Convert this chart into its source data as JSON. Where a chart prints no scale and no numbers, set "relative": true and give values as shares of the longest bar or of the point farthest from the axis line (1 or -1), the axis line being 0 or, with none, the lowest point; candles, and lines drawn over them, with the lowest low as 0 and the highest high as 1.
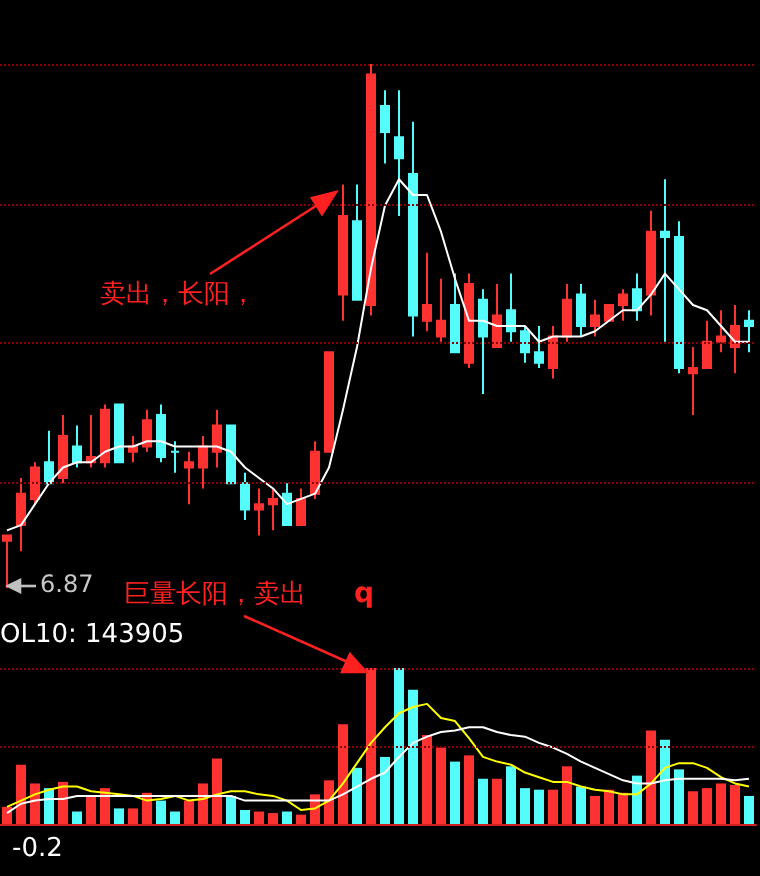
{
  "chart_data": [
    {
      "type": "candlestick",
      "relative": true,
      "ref_lines": [
        {
          "axis": "y",
          "value": 1,
          "color": "#8b0000",
          "line_style": "dotted"
        },
        {
          "axis": "y",
          "value": 0.73,
          "color": "#8b0000",
          "line_style": "dotted"
        },
        {
          "axis": "y",
          "value": 0.47,
          "color": "#8b0000",
          "line_style": "dotted"
        },
        {
          "axis": "y",
          "value": 0.2,
          "color": "#8b0000",
          "line_style": "dotted"
        }
      ],
      "categories": [
        null,
        null,
        null,
        null,
        null,
        null,
        null,
        null,
        null,
        null,
        null,
        null,
        null,
        null,
        null,
        null,
        null,
        null,
        null,
        null,
        null,
        null,
        null,
        null,
        null,
        null,
        null,
        null,
        null,
        null,
        null,
        null,
        null,
        null,
        null,
        null,
        null,
        null,
        null,
        null,
        null,
        null,
        null,
        null,
        null,
        null,
        null,
        null,
        null,
        null,
        null,
        null,
        null,
        null
      ],
      "ohlc": [
        [
          0.09,
          0.1,
          0,
          0.1
        ],
        [
          0.12,
          0.21,
          0.07,
          0.18
        ],
        [
          0.17,
          0.24,
          0.16,
          0.23
        ],
        [
          0.24,
          0.3,
          0.2,
          0.2
        ],
        [
          0.21,
          0.33,
          0.2,
          0.29
        ],
        [
          0.27,
          0.31,
          0.23,
          0.24
        ],
        [
          0.24,
          0.33,
          0.23,
          0.25
        ],
        [
          0.24,
          0.35,
          0.23,
          0.34
        ],
        [
          0.35,
          0.35,
          0.24,
          0.24
        ],
        [
          0.26,
          0.29,
          0.24,
          0.27
        ],
        [
          0.27,
          0.34,
          0.26,
          0.32
        ],
        [
          0.33,
          0.35,
          0.24,
          0.25
        ],
        [
          0.26,
          0.28,
          0.22,
          0.26
        ],
        [
          0.23,
          0.26,
          0.16,
          0.24
        ],
        [
          0.23,
          0.29,
          0.19,
          0.27
        ],
        [
          0.26,
          0.34,
          0.23,
          0.31
        ],
        [
          0.31,
          0.31,
          0.2,
          0.2
        ],
        [
          0.2,
          0.22,
          0.13,
          0.15
        ],
        [
          0.15,
          0.19,
          0.1,
          0.16
        ],
        [
          0.16,
          0.19,
          0.11,
          0.17
        ],
        [
          0.18,
          0.2,
          0.12,
          0.12
        ],
        [
          0.12,
          0.19,
          0.12,
          0.17
        ],
        [
          0.18,
          0.28,
          0.17,
          0.26
        ],
        [
          0.26,
          0.45,
          0.26,
          0.45
        ],
        [
          0.56,
          0.77,
          0.51,
          0.71
        ],
        [
          0.7,
          0.77,
          0.55,
          0.55
        ],
        [
          0.54,
          1,
          0.52,
          0.98
        ],
        [
          0.92,
          0.95,
          0.81,
          0.87
        ],
        [
          0.86,
          0.95,
          0.71,
          0.82
        ],
        [
          0.79,
          0.89,
          0.48,
          0.52
        ],
        [
          0.51,
          0.64,
          0.49,
          0.54
        ],
        [
          0.48,
          0.59,
          0.47,
          0.51
        ],
        [
          0.54,
          0.6,
          0.45,
          0.45
        ],
        [
          0.43,
          0.6,
          0.42,
          0.58
        ],
        [
          0.55,
          0.57,
          0.37,
          0.48
        ],
        [
          0.46,
          0.58,
          0.46,
          0.52
        ],
        [
          0.53,
          0.6,
          0.47,
          0.49
        ],
        [
          0.49,
          0.5,
          0.43,
          0.45
        ],
        [
          0.45,
          0.5,
          0.42,
          0.43
        ],
        [
          0.42,
          0.5,
          0.4,
          0.48
        ],
        [
          0.48,
          0.58,
          0.47,
          0.55
        ],
        [
          0.56,
          0.58,
          0.48,
          0.5
        ],
        [
          0.5,
          0.55,
          0.48,
          0.52
        ],
        [
          0.51,
          0.54,
          0.51,
          0.54
        ],
        [
          0.54,
          0.57,
          0.51,
          0.56
        ],
        [
          0.57,
          0.6,
          0.51,
          0.53
        ],
        [
          0.56,
          0.72,
          0.52,
          0.68
        ],
        [
          0.68,
          0.78,
          0.47,
          0.67
        ],
        [
          0.67,
          0.7,
          0.41,
          0.42
        ],
        [
          0.41,
          0.46,
          0.33,
          0.42
        ],
        [
          0.42,
          0.51,
          0.42,
          0.47
        ],
        [
          0.47,
          0.53,
          0.45,
          0.48
        ],
        [
          0.46,
          0.54,
          0.41,
          0.5
        ],
        [
          0.51,
          0.53,
          0.45,
          0.5
        ]
      ],
      "colors": [
        "#ff3232",
        "#ff3232",
        "#ff3232",
        "#54fcfc",
        "#ff3232",
        "#54fcfc",
        "#ff3232",
        "#ff3232",
        "#54fcfc",
        "#ff3232",
        "#ff3232",
        "#54fcfc",
        "#54fcfc",
        "#ff3232",
        "#ff3232",
        "#ff3232",
        "#54fcfc",
        "#54fcfc",
        "#ff3232",
        "#ff3232",
        "#54fcfc",
        "#ff3232",
        "#ff3232",
        "#ff3232",
        "#ff3232",
        "#54fcfc",
        "#ff3232",
        "#54fcfc",
        "#54fcfc",
        "#54fcfc",
        "#ff3232",
        "#ff3232",
        "#54fcfc",
        "#ff3232",
        "#54fcfc",
        "#ff3232",
        "#54fcfc",
        "#54fcfc",
        "#54fcfc",
        "#ff3232",
        "#ff3232",
        "#54fcfc",
        "#ff3232",
        "#ff3232",
        "#ff3232",
        "#54fcfc",
        "#ff3232",
        "#54fcfc",
        "#54fcfc",
        "#ff3232",
        "#ff3232",
        "#ff3232",
        "#ff3232",
        "#54fcfc"
      ],
      "series": [
        {
          "type": "line",
          "color": "#ffffff",
          "values": [
            0.11,
            0.12,
            0.16,
            0.2,
            0.23,
            0.24,
            0.24,
            0.26,
            0.27,
            0.27,
            0.28,
            0.28,
            0.27,
            0.27,
            0.27,
            0.27,
            0.26,
            0.23,
            0.21,
            0.19,
            0.16,
            0.17,
            0.18,
            0.23,
            0.34,
            0.46,
            0.61,
            0.73,
            0.78,
            0.75,
            0.75,
            0.68,
            0.59,
            0.51,
            0.51,
            0.5,
            0.5,
            0.5,
            0.47,
            0.48,
            0.48,
            0.48,
            0.49,
            0.51,
            0.53,
            0.53,
            0.56,
            0.6,
            0.57,
            0.54,
            0.53,
            0.5,
            0.47,
            0.47
          ]
        }
      ],
      "annotations": [
        "卖出，长阳，",
        "6.87",
        "巨量长阳，卖出",
        "q"
      ]
    },
    {
      "type": "bar",
      "relative": true,
      "ref_lines": [
        {
          "axis": "y",
          "value": 1,
          "color": "#8b0000",
          "line_style": "dotted"
        },
        {
          "axis": "y",
          "value": 0.5,
          "color": "#8b0000",
          "line_style": "dotted"
        }
      ],
      "categories": [
        null,
        null,
        null,
        null,
        null,
        null,
        null,
        null,
        null,
        null,
        null,
        null,
        null,
        null,
        null,
        null,
        null,
        null,
        null,
        null,
        null,
        null,
        null,
        null,
        null,
        null,
        null,
        null,
        null,
        null,
        null,
        null,
        null,
        null,
        null,
        null,
        null,
        null,
        null,
        null,
        null,
        null,
        null,
        null,
        null,
        null,
        null,
        null,
        null,
        null,
        null,
        null,
        null,
        null
      ],
      "series": [
        {
          "type": "bar",
          "values": [
            0.11,
            0.38,
            0.26,
            0.23,
            0.27,
            0.08,
            0.18,
            0.23,
            0.1,
            0.1,
            0.2,
            0.15,
            0.08,
            0.15,
            0.26,
            0.42,
            0.18,
            0.09,
            0.08,
            0.07,
            0.08,
            0.06,
            0.19,
            0.28,
            0.64,
            0.36,
            1.0,
            0.43,
            1.0,
            0.86,
            0.57,
            0.49,
            0.4,
            0.44,
            0.29,
            0.29,
            0.37,
            0.23,
            0.22,
            0.22,
            0.37,
            0.24,
            0.18,
            0.22,
            0.2,
            0.31,
            0.6,
            0.54,
            0.35,
            0.21,
            0.23,
            0.26,
            0.25,
            0.18
          ],
          "colors": [
            "#ff3232",
            "#ff3232",
            "#ff3232",
            "#54fcfc",
            "#ff3232",
            "#54fcfc",
            "#ff3232",
            "#ff3232",
            "#54fcfc",
            "#ff3232",
            "#ff3232",
            "#54fcfc",
            "#54fcfc",
            "#ff3232",
            "#ff3232",
            "#ff3232",
            "#54fcfc",
            "#54fcfc",
            "#ff3232",
            "#ff3232",
            "#54fcfc",
            "#ff3232",
            "#ff3232",
            "#ff3232",
            "#ff3232",
            "#54fcfc",
            "#ff3232",
            "#54fcfc",
            "#54fcfc",
            "#54fcfc",
            "#ff3232",
            "#ff3232",
            "#54fcfc",
            "#ff3232",
            "#54fcfc",
            "#ff3232",
            "#54fcfc",
            "#54fcfc",
            "#54fcfc",
            "#ff3232",
            "#ff3232",
            "#54fcfc",
            "#ff3232",
            "#ff3232",
            "#ff3232",
            "#54fcfc",
            "#ff3232",
            "#54fcfc",
            "#54fcfc",
            "#ff3232",
            "#ff3232",
            "#ff3232",
            "#ff3232",
            "#54fcfc"
          ]
        },
        {
          "type": "line",
          "color": "#ffff00",
          "values": [
            0.11,
            0.15,
            0.19,
            0.22,
            0.24,
            0.24,
            0.21,
            0.2,
            0.19,
            0.18,
            0.15,
            0.16,
            0.18,
            0.15,
            0.16,
            0.19,
            0.21,
            0.21,
            0.19,
            0.18,
            0.15,
            0.09,
            0.1,
            0.15,
            0.26,
            0.39,
            0.52,
            0.62,
            0.71,
            0.75,
            0.77,
            0.68,
            0.66,
            0.55,
            0.43,
            0.4,
            0.38,
            0.33,
            0.3,
            0.27,
            0.27,
            0.24,
            0.22,
            0.21,
            0.19,
            0.19,
            0.26,
            0.36,
            0.39,
            0.39,
            0.36,
            0.3,
            0.26,
            0.24
          ]
        },
        {
          "type": "line",
          "color": "#ffffff",
          "values": [
            0.07,
            0.13,
            0.15,
            0.16,
            0.16,
            0.18,
            0.18,
            0.18,
            0.18,
            0.18,
            0.18,
            0.18,
            0.18,
            0.18,
            0.18,
            0.18,
            0.18,
            0.15,
            0.15,
            0.15,
            0.15,
            0.15,
            0.15,
            0.15,
            0.19,
            0.24,
            0.29,
            0.33,
            0.43,
            0.52,
            0.56,
            0.59,
            0.6,
            0.62,
            0.62,
            0.59,
            0.57,
            0.56,
            0.52,
            0.49,
            0.45,
            0.4,
            0.36,
            0.32,
            0.28,
            0.26,
            0.26,
            0.28,
            0.29,
            0.29,
            0.29,
            0.29,
            0.28,
            0.29
          ]
        }
      ],
      "annotations": [
        "OL10: 143905",
        "-0.2"
      ]
    }
  ]
}
